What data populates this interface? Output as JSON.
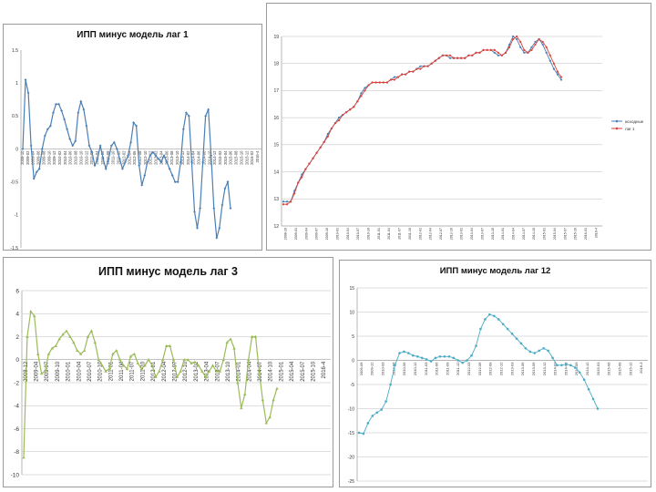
{
  "chart_data": [
    {
      "type": "line",
      "title": "ИПП минус модель лаг 1",
      "color": "#4a7fb5",
      "marker": "diamond",
      "yticks": [
        "1.5",
        "1",
        "0.5",
        "0",
        "-0.5",
        "-1",
        "-1.5"
      ],
      "ylim": [
        -1.5,
        1.5
      ],
      "xticks": [
        "2008-10",
        "2009-02",
        "2009-04",
        "2009-06",
        "2009-08",
        "2009-10",
        "2009-12",
        "2010-02",
        "2010-04",
        "2010-06",
        "2010-08",
        "2010-10",
        "2010-12",
        "2011-02",
        "2011-04",
        "2011-06",
        "2011-08",
        "2011-10",
        "2011-12",
        "2012-02",
        "2012-04",
        "2012-06",
        "2012-08",
        "2012-10",
        "2012-12",
        "2013-02",
        "2013-04",
        "2013-06",
        "2013-08",
        "2013-10",
        "2013-12",
        "2014-02",
        "2014-04",
        "2014-06",
        "2014-08",
        "2014-10",
        "2014-12",
        "2015-02",
        "2015-04",
        "2015-06",
        "2015-08",
        "2015-10",
        "2015-12",
        "2016-02",
        "2016-4"
      ],
      "values": [
        0.0,
        1.05,
        0.85,
        0.05,
        -0.45,
        -0.35,
        -0.3,
        0.0,
        0.2,
        0.3,
        0.35,
        0.55,
        0.68,
        0.68,
        0.58,
        0.45,
        0.3,
        0.15,
        0.05,
        0.12,
        0.55,
        0.72,
        0.6,
        0.35,
        0.05,
        -0.05,
        -0.25,
        -0.15,
        0.05,
        -0.15,
        -0.3,
        -0.15,
        0.05,
        0.1,
        0.0,
        -0.15,
        -0.3,
        -0.2,
        -0.1,
        0.1,
        0.4,
        0.35,
        -0.25,
        -0.55,
        -0.4,
        -0.2,
        -0.1,
        -0.05,
        -0.1,
        -0.15,
        -0.2,
        -0.1,
        -0.2,
        -0.3,
        -0.4,
        -0.5,
        -0.5,
        -0.2,
        0.3,
        0.55,
        0.5,
        -0.2,
        -0.95,
        -1.2,
        -0.9,
        -0.2,
        0.5,
        0.6,
        -0.1,
        -0.9,
        -1.35,
        -1.2,
        -0.85,
        -0.6,
        -0.5,
        -0.9
      ]
    },
    {
      "type": "line",
      "title": "",
      "yticks": [
        "19",
        "18",
        "17",
        "16",
        "15",
        "14",
        "13",
        "12"
      ],
      "ylim": [
        12,
        19
      ],
      "xticks": [
        "2008-10",
        "2009-01",
        "2009-04",
        "2009-07",
        "2009-10",
        "2010-01",
        "2010-04",
        "2010-07",
        "2010-10",
        "2011-01",
        "2011-04",
        "2011-07",
        "2011-10",
        "2012-01",
        "2012-04",
        "2012-07",
        "2012-10",
        "2013-01",
        "2013-04",
        "2013-07",
        "2013-10",
        "2014-01",
        "2014-04",
        "2014-07",
        "2014-10",
        "2015-01",
        "2015-04",
        "2015-07",
        "2015-10",
        "2016-01",
        "2016-4"
      ],
      "legend": [
        "исходные",
        "лаг 1"
      ],
      "series": [
        {
          "name": "исходные",
          "color": "#4a7fb5",
          "values": [
            12.9,
            12.9,
            12.9,
            13.3,
            13.6,
            13.9,
            14.1,
            14.3,
            14.5,
            14.7,
            14.9,
            15.1,
            15.4,
            15.6,
            15.8,
            16.0,
            16.1,
            16.2,
            16.3,
            16.4,
            16.6,
            16.9,
            17.1,
            17.2,
            17.3,
            17.3,
            17.3,
            17.3,
            17.3,
            17.4,
            17.5,
            17.5,
            17.6,
            17.6,
            17.7,
            17.7,
            17.8,
            17.9,
            17.9,
            17.9,
            18.0,
            18.1,
            18.2,
            18.3,
            18.3,
            18.2,
            18.2,
            18.2,
            18.2,
            18.2,
            18.3,
            18.3,
            18.4,
            18.4,
            18.5,
            18.5,
            18.5,
            18.4,
            18.3,
            18.3,
            18.4,
            18.7,
            19.0,
            18.9,
            18.6,
            18.4,
            18.4,
            18.6,
            18.8,
            18.9,
            18.7,
            18.4,
            18.1,
            17.8,
            17.6,
            17.4
          ]
        },
        {
          "name": "лаг 1",
          "color": "#d9423a",
          "values": [
            12.8,
            12.8,
            12.9,
            13.2,
            13.6,
            13.8,
            14.1,
            14.3,
            14.5,
            14.7,
            14.9,
            15.1,
            15.3,
            15.6,
            15.8,
            15.9,
            16.1,
            16.2,
            16.3,
            16.4,
            16.6,
            16.8,
            17.0,
            17.2,
            17.3,
            17.3,
            17.3,
            17.3,
            17.3,
            17.4,
            17.4,
            17.5,
            17.6,
            17.6,
            17.7,
            17.7,
            17.8,
            17.8,
            17.9,
            17.9,
            18.0,
            18.1,
            18.2,
            18.3,
            18.3,
            18.3,
            18.2,
            18.2,
            18.2,
            18.2,
            18.3,
            18.3,
            18.4,
            18.4,
            18.5,
            18.5,
            18.5,
            18.5,
            18.4,
            18.3,
            18.4,
            18.6,
            18.9,
            19.0,
            18.8,
            18.5,
            18.4,
            18.5,
            18.7,
            18.9,
            18.8,
            18.6,
            18.3,
            18.0,
            17.7,
            17.5
          ]
        }
      ]
    },
    {
      "type": "line",
      "title": "ИПП минус модель  лаг 3",
      "color": "#9bbb59",
      "marker": "triangle",
      "yticks": [
        "6",
        "4",
        "2",
        "0",
        "-2",
        "-4",
        "-6",
        "-8",
        "-10"
      ],
      "ylim": [
        -10,
        6
      ],
      "xticks": [
        "2008-12",
        "2009-04",
        "2009-07",
        "2009-10",
        "2010-01",
        "2010-04",
        "2010-07",
        "2010-10",
        "2011-01",
        "2011-04",
        "2011-07",
        "2011-10",
        "2012-01",
        "2012-04",
        "2012-07",
        "2012-10",
        "2013-01",
        "2013-04",
        "2013-07",
        "2013-10",
        "2014-01",
        "2014-04",
        "2014-07",
        "2014-10",
        "2015-01",
        "2015-04",
        "2015-07",
        "2015-10",
        "2016-4"
      ],
      "values": [
        -8.5,
        2.0,
        4.2,
        3.8,
        0.5,
        -1.2,
        -1.0,
        0.5,
        1.0,
        1.2,
        1.8,
        2.2,
        2.5,
        2.0,
        1.5,
        0.8,
        0.5,
        0.8,
        2.0,
        2.5,
        1.5,
        0.0,
        -0.5,
        -1.0,
        -0.8,
        0.5,
        0.8,
        0.0,
        -0.5,
        -0.8,
        0.3,
        0.5,
        -0.3,
        -0.8,
        -0.5,
        0.0,
        -0.5,
        -1.5,
        -1.0,
        0.0,
        1.2,
        1.2,
        0.0,
        -1.5,
        -1.0,
        0.0,
        0.0,
        -0.3,
        -0.2,
        -0.5,
        -1.0,
        -1.5,
        -1.0,
        -0.5,
        -1.0,
        -1.0,
        0.0,
        1.5,
        1.8,
        1.0,
        -2.0,
        -4.2,
        -3.0,
        0.0,
        2.0,
        2.0,
        -1.0,
        -3.5,
        -5.5,
        -5.0,
        -3.5,
        -2.5
      ]
    },
    {
      "type": "line",
      "title": "ИПП минус модель лаг 12",
      "color": "#4bacc6",
      "marker": "circle",
      "yticks": [
        "15",
        "10",
        "5",
        "0",
        "-5",
        "-10",
        "-15",
        "-20",
        "-25"
      ],
      "ylim": [
        -25,
        15
      ],
      "xticks": [
        "2009-09",
        "2009-12",
        "2010-03",
        "2010-06",
        "2010-09",
        "2010-12",
        "2011-03",
        "2011-06",
        "2011-09",
        "2011-12",
        "2012-03",
        "2012-06",
        "2012-09",
        "2012-12",
        "2013-03",
        "2013-06",
        "2013-09",
        "2013-12",
        "2014-03",
        "2014-06",
        "2014-09",
        "2014-12",
        "2015-03",
        "2015-06",
        "2015-09",
        "2015-12",
        "2016-3"
      ],
      "values": [
        -15.0,
        -15.2,
        -13.0,
        -11.5,
        -10.8,
        -10.2,
        -8.5,
        -5.0,
        -1.0,
        1.5,
        1.8,
        1.5,
        1.0,
        0.8,
        0.5,
        0.2,
        -0.2,
        0.5,
        0.8,
        0.8,
        0.8,
        0.5,
        0.0,
        -0.5,
        0.0,
        1.0,
        3.0,
        6.5,
        8.5,
        9.5,
        9.2,
        8.5,
        7.5,
        6.5,
        5.5,
        4.5,
        3.5,
        2.5,
        1.8,
        1.5,
        2.0,
        2.5,
        2.0,
        0.5,
        -1.0,
        -1.0,
        -0.8,
        -1.0,
        -1.5,
        -2.5,
        -4.0,
        -6.0,
        -8.0,
        -10.0
      ]
    }
  ]
}
